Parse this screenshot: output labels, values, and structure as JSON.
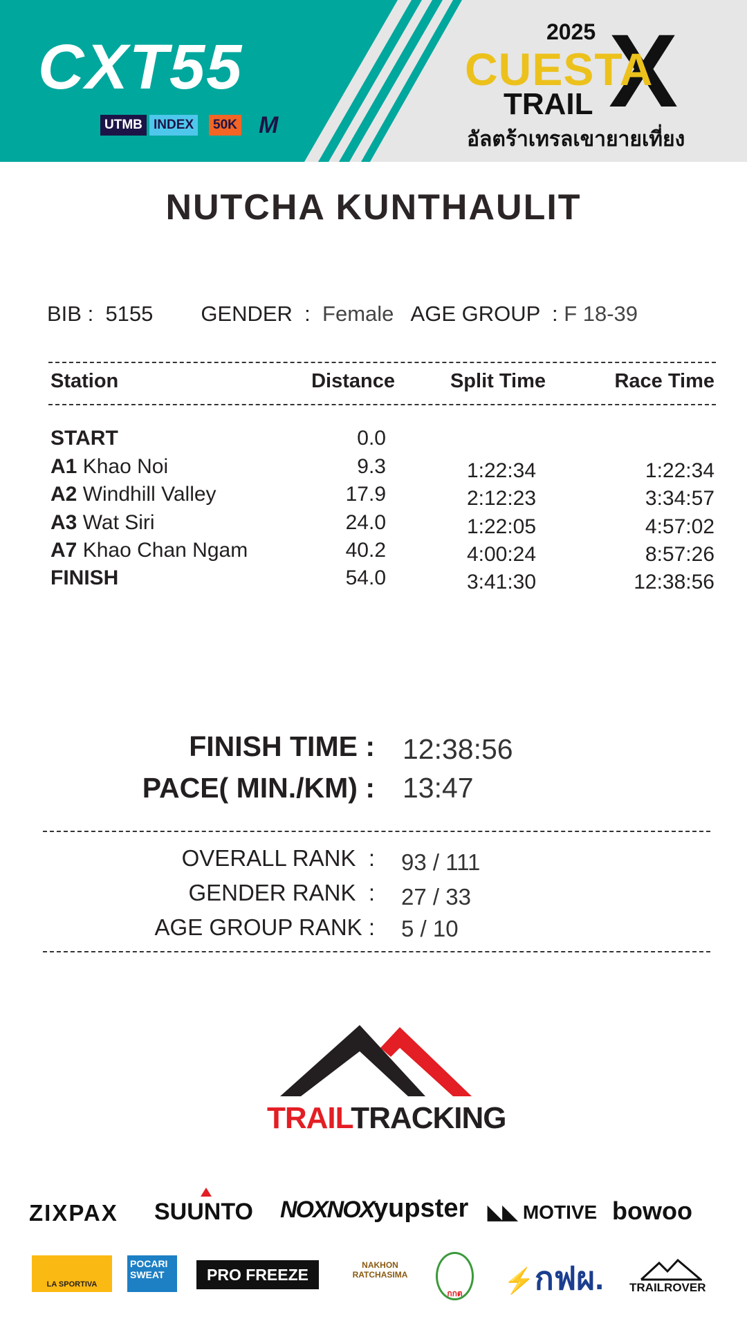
{
  "header": {
    "event_logo": "CXT55",
    "badges": [
      "UTMB",
      "INDEX",
      "50K",
      "M"
    ],
    "year": "2025",
    "title_line1": "CUESTA",
    "title_line2": "TRAIL",
    "thai_title": "อัลตร้าเทรลเขายายเที่ยง",
    "colors": {
      "teal": "#00a79d",
      "yellow": "#ecc11c"
    }
  },
  "runner": {
    "name": "NUTCHA  KUNTHAULIT",
    "bib_label": "BIB :",
    "bib": "5155",
    "gender_label": "GENDER  :",
    "gender": "Female",
    "age_group_label": "AGE GROUP  :",
    "age_group": "F 18-39"
  },
  "table": {
    "headers": [
      "Station",
      "Distance",
      "Split Time",
      "Race Time"
    ],
    "rows": [
      {
        "code": "START",
        "name": "",
        "distance": "0.0",
        "split": "",
        "race": ""
      },
      {
        "code": "A1",
        "name": "Khao Noi",
        "distance": "9.3",
        "split": "1:22:34",
        "race": "1:22:34"
      },
      {
        "code": "A2",
        "name": "Windhill Valley",
        "distance": "17.9",
        "split": "2:12:23",
        "race": "3:34:57"
      },
      {
        "code": "A3",
        "name": "Wat Siri",
        "distance": "24.0",
        "split": "1:22:05",
        "race": "4:57:02"
      },
      {
        "code": "A7",
        "name": "Khao Chan Ngam",
        "distance": "40.2",
        "split": "4:00:24",
        "race": "8:57:26"
      },
      {
        "code": "FINISH",
        "name": "",
        "distance": "54.0",
        "split": "3:41:30",
        "race": "12:38:56"
      }
    ]
  },
  "summary": {
    "finish_label": "FINISH TIME :",
    "finish": "12:38:56",
    "pace_label": "PACE( MIN./KM) :",
    "pace": "13:47"
  },
  "ranks": {
    "overall_label": "OVERALL RANK  :",
    "overall": "93 / 111",
    "gender_label": "GENDER RANK  :",
    "gender": "27 / 33",
    "age_label": "AGE GROUP RANK :",
    "age": "5 / 10"
  },
  "brand": {
    "trail": "TRAIL",
    "tracking": "TRACKING"
  },
  "sponsors": {
    "row1": [
      "ZIXPAX",
      "SUUNTO",
      "NOXNOX",
      "yupster",
      "MOTIVE",
      "bowoo"
    ],
    "row2": [
      "LA SPORTIVA",
      "POCARI SWEAT",
      "PRO FREEZE",
      "NAKHON RATCHASIMA",
      "กกต",
      "กฟผ.",
      "TRAILROVER"
    ]
  }
}
